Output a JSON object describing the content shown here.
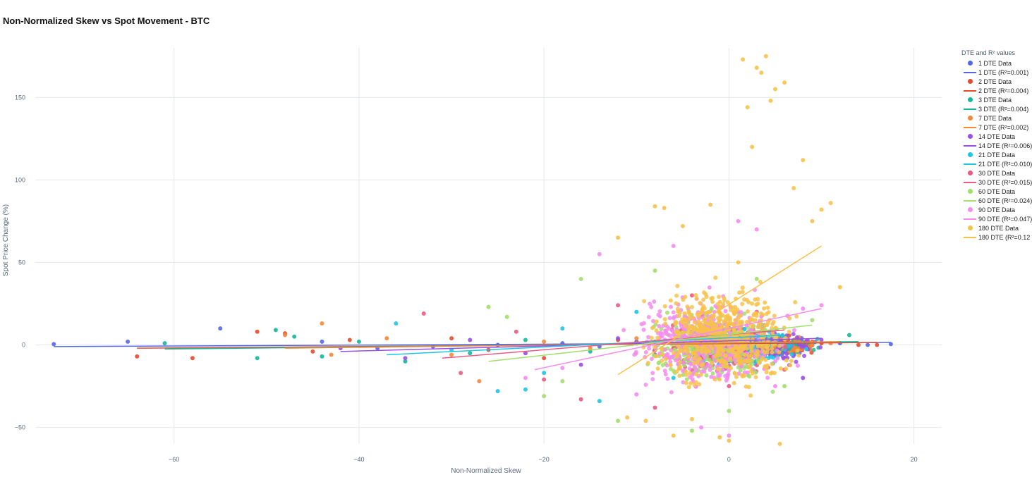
{
  "title": "Non-Normalized Skew vs Spot Movement - BTC",
  "chart_data": {
    "type": "scatter",
    "title": "Non-Normalized Skew vs Spot Movement - BTC",
    "xlabel": "Non-Normalized Skew",
    "ylabel": "Spot Price Change (%)",
    "xlim": [
      -75,
      23
    ],
    "ylim": [
      -60,
      180
    ],
    "x_ticks": [
      -60,
      -40,
      -20,
      0,
      20
    ],
    "y_ticks": [
      -50,
      0,
      50,
      100,
      150
    ],
    "grid": true,
    "legend_title": "DTE and R² values",
    "legend_position": "right",
    "series": [
      {
        "key": "1",
        "name": "1 DTE Data",
        "fit_name": "1 DTE (R²=0.001)",
        "color": "#5468e6",
        "points": [
          [
            -73,
            0.5
          ],
          [
            -65,
            2
          ],
          [
            -55,
            10
          ],
          [
            -44,
            2
          ],
          [
            -38,
            -2
          ],
          [
            -32,
            -1
          ],
          [
            -25,
            0
          ],
          [
            -18,
            1
          ],
          [
            -14,
            -1
          ],
          [
            -10,
            2
          ],
          [
            -8,
            -3
          ],
          [
            -5,
            1
          ],
          [
            -2,
            -2
          ],
          [
            0,
            1
          ],
          [
            3,
            -1
          ],
          [
            6,
            2
          ],
          [
            9,
            0
          ],
          [
            12,
            1
          ],
          [
            15,
            0
          ],
          [
            17.5,
            0.5
          ]
        ],
        "fit": [
          [
            -73,
            -1
          ],
          [
            17.5,
            1.5
          ]
        ],
        "spread": [
          -4,
          12,
          -12,
          12
        ],
        "n": 150
      },
      {
        "key": "2",
        "name": "2 DTE Data",
        "fit_name": "2 DTE (R²=0.004)",
        "color": "#e64a2e",
        "points": [
          [
            -64,
            -7
          ],
          [
            -58,
            -8
          ],
          [
            -51,
            8
          ],
          [
            -48,
            7
          ],
          [
            -45,
            -4
          ],
          [
            -41,
            3
          ],
          [
            -30,
            4
          ],
          [
            -26,
            -3
          ],
          [
            -20,
            -8
          ],
          [
            -12,
            3
          ],
          [
            -6,
            -2
          ],
          [
            0,
            2
          ],
          [
            5,
            -3
          ],
          [
            10,
            1
          ],
          [
            14,
            0
          ],
          [
            16,
            0
          ]
        ],
        "fit": [
          [
            -64,
            -2
          ],
          [
            16,
            1.5
          ]
        ],
        "spread": [
          -4,
          12,
          -12,
          12
        ],
        "n": 150
      },
      {
        "key": "3",
        "name": "3 DTE Data",
        "fit_name": "3 DTE (R²=0.004)",
        "color": "#16b89a",
        "points": [
          [
            -61,
            1
          ],
          [
            -51,
            -8
          ],
          [
            -49,
            9
          ],
          [
            -47,
            5
          ],
          [
            -44,
            -7
          ],
          [
            -40,
            2
          ],
          [
            -35,
            -10
          ],
          [
            -28,
            -5
          ],
          [
            -22,
            3
          ],
          [
            -15,
            -4
          ],
          [
            -8,
            2
          ],
          [
            -2,
            -1
          ],
          [
            4,
            3
          ],
          [
            9,
            0
          ],
          [
            13,
            6
          ]
        ],
        "fit": [
          [
            -61,
            -2.5
          ],
          [
            14,
            2
          ]
        ],
        "spread": [
          -5,
          12,
          -15,
          12
        ],
        "n": 150
      },
      {
        "key": "7",
        "name": "7 DTE Data",
        "fit_name": "7 DTE (R²=0.002)",
        "color": "#f5883a",
        "points": [
          [
            -48,
            6
          ],
          [
            -44,
            13
          ],
          [
            -43,
            -6
          ],
          [
            -37,
            4
          ],
          [
            -30,
            -6
          ],
          [
            -27,
            -22
          ],
          [
            -20,
            2
          ],
          [
            -15,
            -2
          ],
          [
            -10,
            4
          ],
          [
            -5,
            -3
          ],
          [
            0,
            2
          ],
          [
            6,
            -2
          ],
          [
            11,
            1
          ]
        ],
        "fit": [
          [
            -48,
            -2
          ],
          [
            12,
            2
          ]
        ],
        "spread": [
          -5,
          12,
          -15,
          15
        ],
        "n": 150
      },
      {
        "key": "14",
        "name": "14 DTE Data",
        "fit_name": "14 DTE (R²=0.006)",
        "color": "#9a4ee8",
        "points": [
          [
            -42,
            -2
          ],
          [
            -35,
            -8
          ],
          [
            -28,
            3
          ],
          [
            -22,
            -5
          ],
          [
            -16,
            -12
          ],
          [
            -12,
            4
          ],
          [
            -8,
            -6
          ],
          [
            -4,
            8
          ],
          [
            0,
            -10
          ],
          [
            4,
            5
          ],
          [
            8,
            -20
          ],
          [
            10,
            3
          ]
        ],
        "fit": [
          [
            -42,
            -4
          ],
          [
            10,
            4
          ]
        ],
        "spread": [
          -5,
          12,
          -25,
          20
        ],
        "n": 200
      },
      {
        "key": "21",
        "name": "21 DTE Data",
        "fit_name": "21 DTE (R²=0.010)",
        "color": "#1cc6e6",
        "points": [
          [
            -36,
            13
          ],
          [
            -30,
            -3
          ],
          [
            -25,
            -28
          ],
          [
            -22,
            -27
          ],
          [
            -20,
            -17
          ],
          [
            -18,
            10
          ],
          [
            -14,
            -34
          ],
          [
            -10,
            20
          ],
          [
            -6,
            -20
          ],
          [
            -2,
            12
          ],
          [
            2,
            -8
          ],
          [
            6,
            4
          ]
        ],
        "fit": [
          [
            -37,
            -6
          ],
          [
            6,
            6
          ]
        ],
        "spread": [
          -8,
          10,
          -30,
          25
        ],
        "n": 220
      },
      {
        "key": "30",
        "name": "30 DTE Data",
        "fit_name": "30 DTE (R²=0.015)",
        "color": "#eb5a84",
        "points": [
          [
            -33,
            19
          ],
          [
            -29,
            -17
          ],
          [
            -23,
            8
          ],
          [
            -20,
            -21
          ],
          [
            -16,
            -33
          ],
          [
            -12,
            24
          ],
          [
            -8,
            -38
          ],
          [
            -4,
            30
          ],
          [
            0,
            -25
          ],
          [
            3,
            20
          ],
          [
            6,
            -15
          ]
        ],
        "fit": [
          [
            -31,
            -8
          ],
          [
            6,
            9
          ]
        ],
        "spread": [
          -10,
          8,
          -40,
          30
        ],
        "n": 260
      },
      {
        "key": "60",
        "name": "60 DTE Data",
        "fit_name": "60 DTE (R²=0.024)",
        "color": "#a2de6c",
        "points": [
          [
            -26,
            23
          ],
          [
            -24,
            17
          ],
          [
            -20,
            -31
          ],
          [
            -18,
            -22
          ],
          [
            -16,
            40
          ],
          [
            -12,
            -46
          ],
          [
            -8,
            45
          ],
          [
            -4,
            -52
          ],
          [
            0,
            -40
          ],
          [
            3,
            40
          ],
          [
            6,
            -25
          ],
          [
            9,
            15
          ]
        ],
        "fit": [
          [
            -26,
            -10
          ],
          [
            9,
            12
          ]
        ],
        "spread": [
          -12,
          8,
          -50,
          45
        ],
        "n": 320
      },
      {
        "key": "90",
        "name": "90 DTE Data",
        "fit_name": "90 DTE (R²=0.047)",
        "color": "#f58cf0",
        "points": [
          [
            -22,
            -20
          ],
          [
            -18,
            -14
          ],
          [
            -14,
            55
          ],
          [
            -10,
            -30
          ],
          [
            -6,
            60
          ],
          [
            -3,
            -50
          ],
          [
            0,
            -55
          ],
          [
            1,
            75
          ],
          [
            3,
            70
          ],
          [
            5,
            -25
          ],
          [
            8,
            22
          ],
          [
            10,
            24
          ]
        ],
        "fit": [
          [
            -21,
            -15
          ],
          [
            10,
            22
          ]
        ],
        "spread": [
          -14,
          9,
          -55,
          70
        ],
        "n": 420
      },
      {
        "key": "180",
        "name": "180 DTE Data",
        "fit_name": "180 DTE (R²=0.12",
        "color": "#f8c24a",
        "points": [
          [
            -12,
            65
          ],
          [
            -11,
            -44
          ],
          [
            -9,
            -46
          ],
          [
            -8,
            84
          ],
          [
            -7,
            83
          ],
          [
            -6,
            -55
          ],
          [
            -5,
            72
          ],
          [
            -4,
            -45
          ],
          [
            -2,
            85
          ],
          [
            -1,
            -56
          ],
          [
            0,
            -58
          ],
          [
            1,
            50
          ],
          [
            1.5,
            173
          ],
          [
            2,
            144
          ],
          [
            2.5,
            120
          ],
          [
            3,
            168
          ],
          [
            3.5,
            165
          ],
          [
            4,
            175
          ],
          [
            4.5,
            148
          ],
          [
            5,
            155
          ],
          [
            5.5,
            -60
          ],
          [
            6,
            159
          ],
          [
            7,
            95
          ],
          [
            8,
            112
          ],
          [
            9,
            75
          ],
          [
            10,
            82
          ],
          [
            11,
            86
          ],
          [
            12,
            35
          ]
        ],
        "fit": [
          [
            -12,
            -18
          ],
          [
            10,
            60
          ]
        ],
        "spread": [
          -12,
          11,
          -50,
          85
        ],
        "n": 520
      }
    ]
  }
}
